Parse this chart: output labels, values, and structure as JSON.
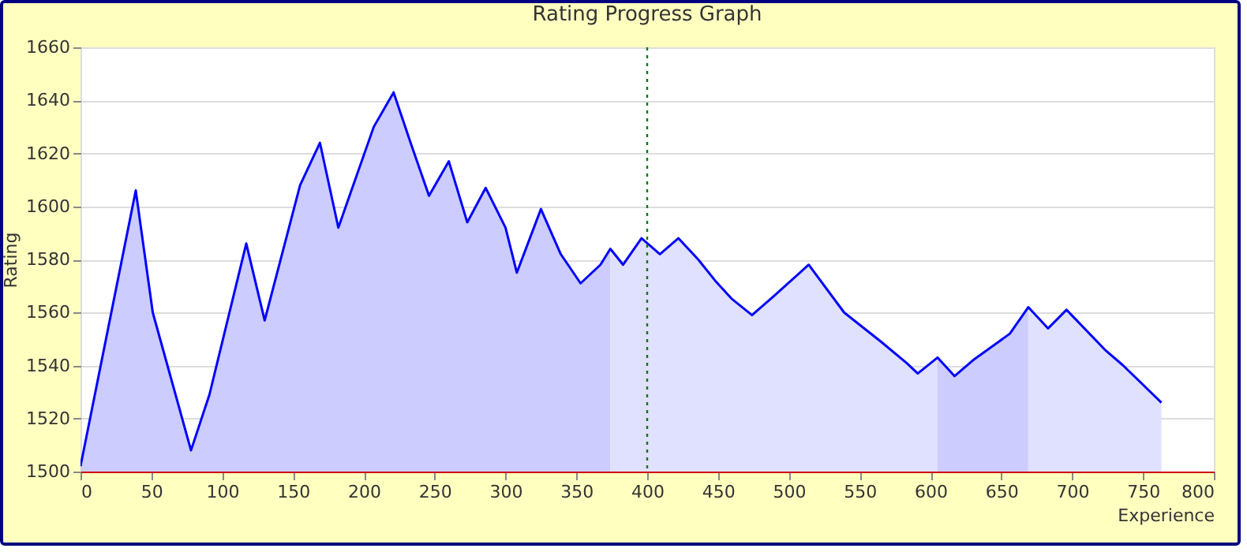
{
  "chart_data": {
    "type": "area",
    "title": "Rating Progress Graph",
    "xlabel": "Experience",
    "ylabel": "Rating",
    "xlim": [
      0,
      800
    ],
    "xticks": [
      0,
      50,
      100,
      150,
      200,
      250,
      300,
      350,
      400,
      450,
      500,
      550,
      600,
      650,
      700,
      750,
      800
    ],
    "ylim": [
      1500,
      1660
    ],
    "yticks": [
      1500,
      1520,
      1540,
      1560,
      1580,
      1600,
      1620,
      1640,
      1660
    ],
    "grid": "y",
    "series": [
      {
        "type": "area",
        "color": "#ccccff",
        "x": [
          0,
          39,
          51,
          78,
          91,
          117,
          130,
          155,
          169,
          182,
          207,
          221,
          233,
          246,
          260,
          273,
          286,
          300,
          308,
          325,
          339,
          353,
          367,
          374
        ],
        "values": [
          1502,
          1606,
          1560,
          1508,
          1529,
          1586,
          1557,
          1608,
          1624,
          1592,
          1630,
          1643,
          1624,
          1604,
          1617,
          1594,
          1607,
          1592,
          1575,
          1599,
          1582,
          1571,
          1578,
          1584
        ]
      },
      {
        "type": "area",
        "color": "#e0e0ff",
        "x": [
          374,
          383,
          396,
          409,
          422,
          436,
          448,
          460,
          474,
          489,
          514,
          539,
          565,
          583,
          591,
          605
        ],
        "values": [
          1584,
          1578,
          1588,
          1582,
          1588,
          1580,
          1572,
          1565,
          1559,
          1566,
          1578,
          1560,
          1549,
          1541,
          1537,
          1543
        ]
      },
      {
        "type": "area",
        "color": "#ccccff",
        "x": [
          605,
          617,
          630,
          656,
          669
        ],
        "values": [
          1543,
          1536,
          1542,
          1552,
          1562
        ]
      },
      {
        "type": "area",
        "color": "#e0e0ff",
        "x": [
          669,
          683,
          696,
          723,
          736,
          763
        ],
        "values": [
          1562,
          1554,
          1561,
          1546,
          1540,
          1526
        ]
      },
      {
        "type": "line",
        "color": "#0000ff",
        "x": [
          0,
          39,
          51,
          78,
          91,
          117,
          130,
          155,
          169,
          182,
          207,
          221,
          233,
          246,
          260,
          273,
          286,
          300,
          308,
          325,
          339,
          353,
          367,
          374,
          383,
          396,
          409,
          422,
          436,
          448,
          460,
          474,
          489,
          514,
          539,
          565,
          583,
          591,
          605,
          617,
          630,
          656,
          669,
          683,
          696,
          723,
          736,
          763
        ],
        "values": [
          1502,
          1606,
          1560,
          1508,
          1529,
          1586,
          1557,
          1608,
          1624,
          1592,
          1630,
          1643,
          1624,
          1604,
          1617,
          1594,
          1607,
          1592,
          1575,
          1599,
          1582,
          1571,
          1578,
          1584,
          1578,
          1588,
          1582,
          1588,
          1580,
          1572,
          1565,
          1559,
          1566,
          1578,
          1560,
          1549,
          1541,
          1537,
          1543,
          1536,
          1542,
          1552,
          1562,
          1554,
          1561,
          1546,
          1540,
          1526
        ]
      }
    ],
    "ref_lines": [
      {
        "axis": "x",
        "value": 400,
        "color": "#008000",
        "line_style": "dotted"
      }
    ]
  }
}
